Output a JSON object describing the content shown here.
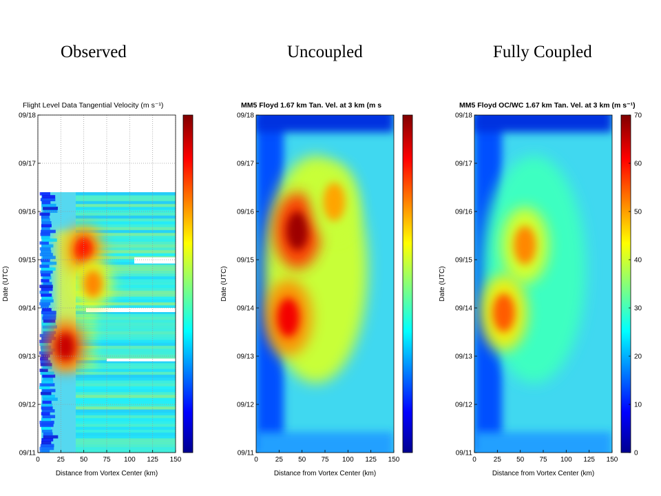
{
  "column_titles": {
    "observed": "Observed",
    "uncoupled": "Uncoupled",
    "fully_coupled": "Fully Coupled"
  },
  "chart_data": [
    {
      "type": "heatmap",
      "title": "Flight Level Data Tangential Velocity (m s⁻¹)",
      "xlabel": "Distance from Vortex Center (km)",
      "ylabel": "Date (UTC)",
      "x_ticks": [
        0,
        25,
        50,
        75,
        100,
        125,
        150
      ],
      "y_ticks": [
        "09/11",
        "09/12",
        "09/13",
        "09/14",
        "09/15",
        "09/16",
        "09/17",
        "09/18"
      ],
      "xlim": [
        0,
        150
      ],
      "grid": true,
      "colorbar": {
        "range": [
          0,
          70
        ],
        "ticks": []
      },
      "features": [
        {
          "date": "09/13.2",
          "x_km": 30,
          "velocity": 65
        },
        {
          "date": "09/15.2",
          "x_km": 50,
          "velocity": 60
        },
        {
          "date": "09/14.5",
          "x_km": 60,
          "velocity": 52
        }
      ]
    },
    {
      "type": "heatmap",
      "title": "MM5 Floyd 1.67 km Tan. Vel. at 3 km (m s",
      "xlabel": "Distance from Vortex Center (km)",
      "ylabel": "Date (UTC)",
      "x_ticks": [
        0,
        25,
        50,
        75,
        100,
        125,
        150
      ],
      "y_ticks": [
        "09/11",
        "09/12",
        "09/13",
        "09/14",
        "09/15",
        "09/16",
        "09/17",
        "09/18"
      ],
      "xlim": [
        0,
        150
      ],
      "grid": false,
      "colorbar": {
        "range": [
          0,
          70
        ],
        "ticks": []
      },
      "features": [
        {
          "date": "09/15.6",
          "x_km": 45,
          "velocity": 68
        },
        {
          "date": "09/13.8",
          "x_km": 35,
          "velocity": 62
        },
        {
          "date": "09/16.2",
          "x_km": 85,
          "velocity": 50
        }
      ]
    },
    {
      "type": "heatmap",
      "title": "MM5 Floyd OC/WC 1.67 km Tan. Vel. at 3 km (m s⁻¹)",
      "xlabel": "Distance from Vortex Center (km)",
      "ylabel": "Date (UTC)",
      "x_ticks": [
        0,
        25,
        50,
        75,
        100,
        125,
        150
      ],
      "y_ticks": [
        "09/11",
        "09/12",
        "09/13",
        "09/14",
        "09/15",
        "09/16",
        "09/17",
        "09/18"
      ],
      "xlim": [
        0,
        150
      ],
      "grid": false,
      "colorbar": {
        "range": [
          0,
          70
        ],
        "ticks": [
          0,
          10,
          20,
          30,
          40,
          50,
          60,
          70
        ]
      },
      "features": [
        {
          "date": "09/15.3",
          "x_km": 55,
          "velocity": 52
        },
        {
          "date": "09/13.9",
          "x_km": 32,
          "velocity": 55
        }
      ]
    }
  ]
}
